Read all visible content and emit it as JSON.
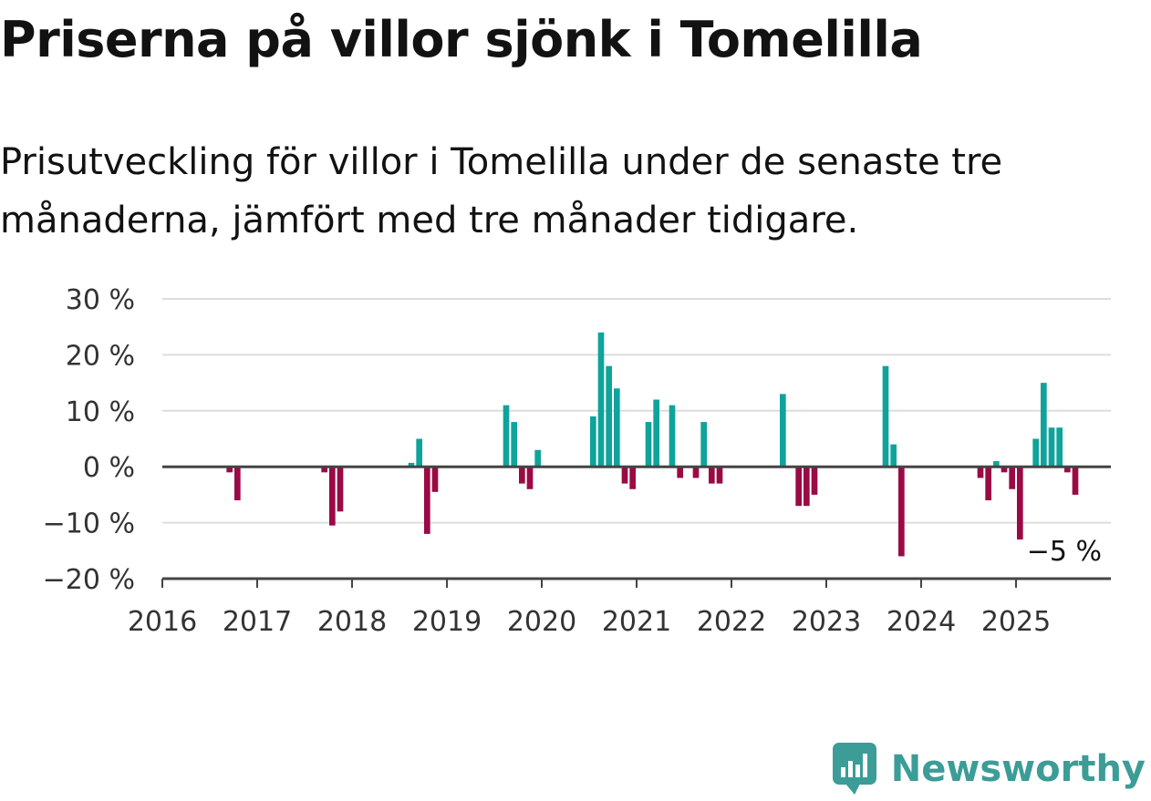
{
  "title": "Priserna på villor sjönk i Tomelilla",
  "subtitle": "Prisutveckling för villor i Tomelilla under de senaste tre månaderna, jämfört med tre månader tidigare.",
  "brand": {
    "name": "Newsworthy",
    "icon": "newsworthy-logo-icon",
    "color": "#3c9c97"
  },
  "colors": {
    "positive": "#0fa39b",
    "negative": "#9a0a45",
    "grid": "#dddddd",
    "axis": "#444444"
  },
  "chart_data": {
    "type": "bar",
    "title": "Priserna på villor sjönk i Tomelilla",
    "xlabel": "",
    "ylabel": "",
    "ylim": [
      -20,
      30
    ],
    "xlim": [
      "2016-01",
      "2025-12"
    ],
    "grid": true,
    "legend": "none",
    "y_ticks": [
      {
        "value": 30,
        "label": "30 %"
      },
      {
        "value": 20,
        "label": "20 %"
      },
      {
        "value": 10,
        "label": "10 %"
      },
      {
        "value": 0,
        "label": "0 %"
      },
      {
        "value": -10,
        "label": "−10 %"
      },
      {
        "value": -20,
        "label": "−20 %"
      }
    ],
    "x_ticks": [
      "2016",
      "2017",
      "2018",
      "2019",
      "2020",
      "2021",
      "2022",
      "2023",
      "2024",
      "2025"
    ],
    "last_value_label": "−5 %",
    "unit": "%",
    "points": [
      {
        "date": "2016-09",
        "value": -1
      },
      {
        "date": "2016-10",
        "value": -6
      },
      {
        "date": "2017-09",
        "value": -1
      },
      {
        "date": "2017-10",
        "value": -10.5
      },
      {
        "date": "2017-11",
        "value": -8
      },
      {
        "date": "2018-08",
        "value": 0.7
      },
      {
        "date": "2018-09",
        "value": 5
      },
      {
        "date": "2018-10",
        "value": -12
      },
      {
        "date": "2018-11",
        "value": -4.5
      },
      {
        "date": "2019-08",
        "value": 11
      },
      {
        "date": "2019-09",
        "value": 8
      },
      {
        "date": "2019-10",
        "value": -3
      },
      {
        "date": "2019-11",
        "value": -4
      },
      {
        "date": "2019-12",
        "value": 3
      },
      {
        "date": "2020-07",
        "value": 9
      },
      {
        "date": "2020-08",
        "value": 24
      },
      {
        "date": "2020-09",
        "value": 18
      },
      {
        "date": "2020-10",
        "value": 14
      },
      {
        "date": "2020-11",
        "value": -3
      },
      {
        "date": "2020-12",
        "value": -4
      },
      {
        "date": "2021-02",
        "value": 8
      },
      {
        "date": "2021-03",
        "value": 12
      },
      {
        "date": "2021-05",
        "value": 11
      },
      {
        "date": "2021-06",
        "value": -2
      },
      {
        "date": "2021-08",
        "value": -2
      },
      {
        "date": "2021-09",
        "value": 8
      },
      {
        "date": "2021-10",
        "value": -3
      },
      {
        "date": "2021-11",
        "value": -3
      },
      {
        "date": "2022-07",
        "value": 13
      },
      {
        "date": "2022-09",
        "value": -7
      },
      {
        "date": "2022-10",
        "value": -7
      },
      {
        "date": "2022-11",
        "value": -5
      },
      {
        "date": "2023-08",
        "value": 18
      },
      {
        "date": "2023-09",
        "value": 4
      },
      {
        "date": "2023-10",
        "value": -16
      },
      {
        "date": "2024-08",
        "value": -2
      },
      {
        "date": "2024-09",
        "value": -6
      },
      {
        "date": "2024-10",
        "value": 1
      },
      {
        "date": "2024-11",
        "value": -1
      },
      {
        "date": "2024-12",
        "value": -4
      },
      {
        "date": "2025-01",
        "value": -13
      },
      {
        "date": "2025-03",
        "value": 5
      },
      {
        "date": "2025-04",
        "value": 15
      },
      {
        "date": "2025-05",
        "value": 7
      },
      {
        "date": "2025-06",
        "value": 7
      },
      {
        "date": "2025-07",
        "value": -1
      },
      {
        "date": "2025-08",
        "value": -5
      }
    ]
  }
}
